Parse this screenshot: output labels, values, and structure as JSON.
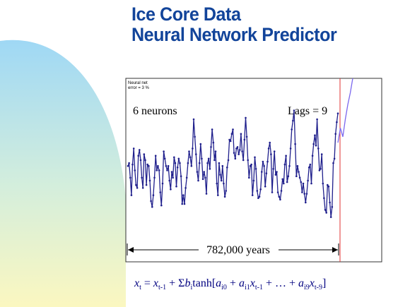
{
  "slide": {
    "title_line1": "Ice Core Data",
    "title_line2": "Neural Network Predictor",
    "formula": {
      "lhs": "x",
      "lhs_sub": "t",
      "eq": " = ",
      "x1": "x",
      "x1_sub": "t-1",
      "plus_sigma": " + Σ",
      "b": "b",
      "b_sub": "i",
      "tanh": "tanh[",
      "a0": "a",
      "a0_sub": "i0",
      "plus1": " + ",
      "a1": "a",
      "a1_sub": "i1",
      "x2": "x",
      "x2_sub": "t-1",
      "ellipsis": " + … + ",
      "a9": "a",
      "a9_sub": "i9",
      "x3": "x",
      "x3_sub": "t-9",
      "close": "]"
    }
  },
  "colors": {
    "title": "#12449a",
    "series": "#1f1f8c",
    "prediction": "#7b68ee",
    "divider": "#e03030",
    "frame": "#333333",
    "bg_blue": "#9fd8f5",
    "bg_yellow": "#fbf7c0"
  },
  "chart_data": {
    "type": "line",
    "title": "Neural net",
    "subtitle": "error = 3 %",
    "annotations": {
      "neurons": "6 neurons",
      "lags": "Lags = 9",
      "span": "782,000 years"
    },
    "grid": false,
    "legend": "none",
    "ylim": [
      0,
      1
    ],
    "x_span_years": 782000,
    "series": [
      {
        "values": [
          0.4,
          0.42,
          0.32,
          0.2,
          0.41,
          0.52,
          0.37,
          0.27,
          0.25,
          0.47,
          0.51,
          0.44,
          0.32,
          0.25,
          0.48,
          0.44,
          0.27,
          0.41,
          0.4,
          0.3,
          0.16,
          0.12,
          0.2,
          0.32,
          0.47,
          0.37,
          0.4,
          0.37,
          0.22,
          0.13,
          0.28,
          0.5,
          0.45,
          0.4,
          0.37,
          0.4,
          0.3,
          0.24,
          0.36,
          0.32,
          0.46,
          0.42,
          0.26,
          0.39,
          0.45,
          0.42,
          0.33,
          0.14,
          0.2,
          0.14,
          0.25,
          0.32,
          0.42,
          0.5,
          0.46,
          0.4,
          0.52,
          0.72,
          0.6,
          0.48,
          0.36,
          0.3,
          0.42,
          0.55,
          0.45,
          0.31,
          0.36,
          0.32,
          0.21,
          0.42,
          0.45,
          0.38,
          0.53,
          0.65,
          0.56,
          0.44,
          0.5,
          0.28,
          0.2,
          0.42,
          0.34,
          0.3,
          0.4,
          0.28,
          0.19,
          0.23,
          0.39,
          0.44,
          0.58,
          0.57,
          0.62,
          0.65,
          0.49,
          0.45,
          0.52,
          0.53,
          0.48,
          0.51,
          0.62,
          0.5,
          0.44,
          0.58,
          0.73,
          0.6,
          0.44,
          0.32,
          0.4,
          0.41,
          0.2,
          0.3,
          0.46,
          0.38,
          0.23,
          0.18,
          0.19,
          0.24,
          0.36,
          0.43,
          0.4,
          0.26,
          0.35,
          0.43,
          0.52,
          0.56,
          0.48,
          0.22,
          0.38,
          0.5,
          0.34,
          0.36,
          0.22,
          0.19,
          0.17,
          0.23,
          0.31,
          0.28,
          0.41,
          0.47,
          0.29,
          0.33,
          0.4,
          0.52,
          0.65,
          0.71,
          0.78,
          0.55,
          0.33,
          0.4,
          0.36,
          0.32,
          0.29,
          0.22,
          0.28,
          0.21,
          0.15,
          0.21,
          0.3,
          0.39,
          0.41,
          0.28,
          0.47,
          0.55,
          0.61,
          0.54,
          0.72,
          0.52,
          0.37,
          0.38,
          0.48,
          0.28,
          0.18,
          0.1,
          0.08,
          0.27,
          0.26,
          0.15,
          0.05,
          0.12,
          0.42,
          0.45,
          0.62,
          0.7,
          0.76
        ]
      },
      {
        "values": [
          0.56,
          0.66,
          0.6,
          0.72,
          0.82,
          0.9,
          1.0
        ]
      }
    ]
  }
}
